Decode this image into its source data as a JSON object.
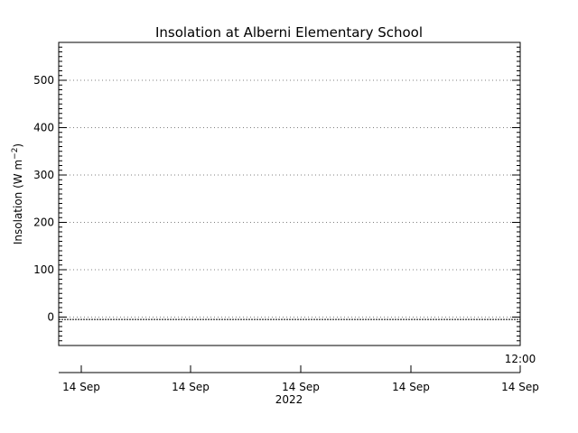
{
  "chart_data": {
    "type": "line",
    "title": "Insolation at Alberni Elementary School",
    "ylabel_main": "Insolation (W m",
    "ylabel_sup": "−2",
    "ylabel_close": ")",
    "ylim": [
      -60,
      580
    ],
    "y_ticks": [
      0,
      100,
      200,
      300,
      400,
      500
    ],
    "y_minor_step": 10,
    "grid": true,
    "x_tick_labels": [
      "14 Sep",
      "14 Sep",
      "14 Sep",
      "14 Sep",
      "14 Sep"
    ],
    "x_time_label": "12:00",
    "x_year_label": "2022",
    "series": [
      {
        "x": [
          0,
          1
        ],
        "values": [
          -5,
          -5
        ]
      }
    ]
  }
}
